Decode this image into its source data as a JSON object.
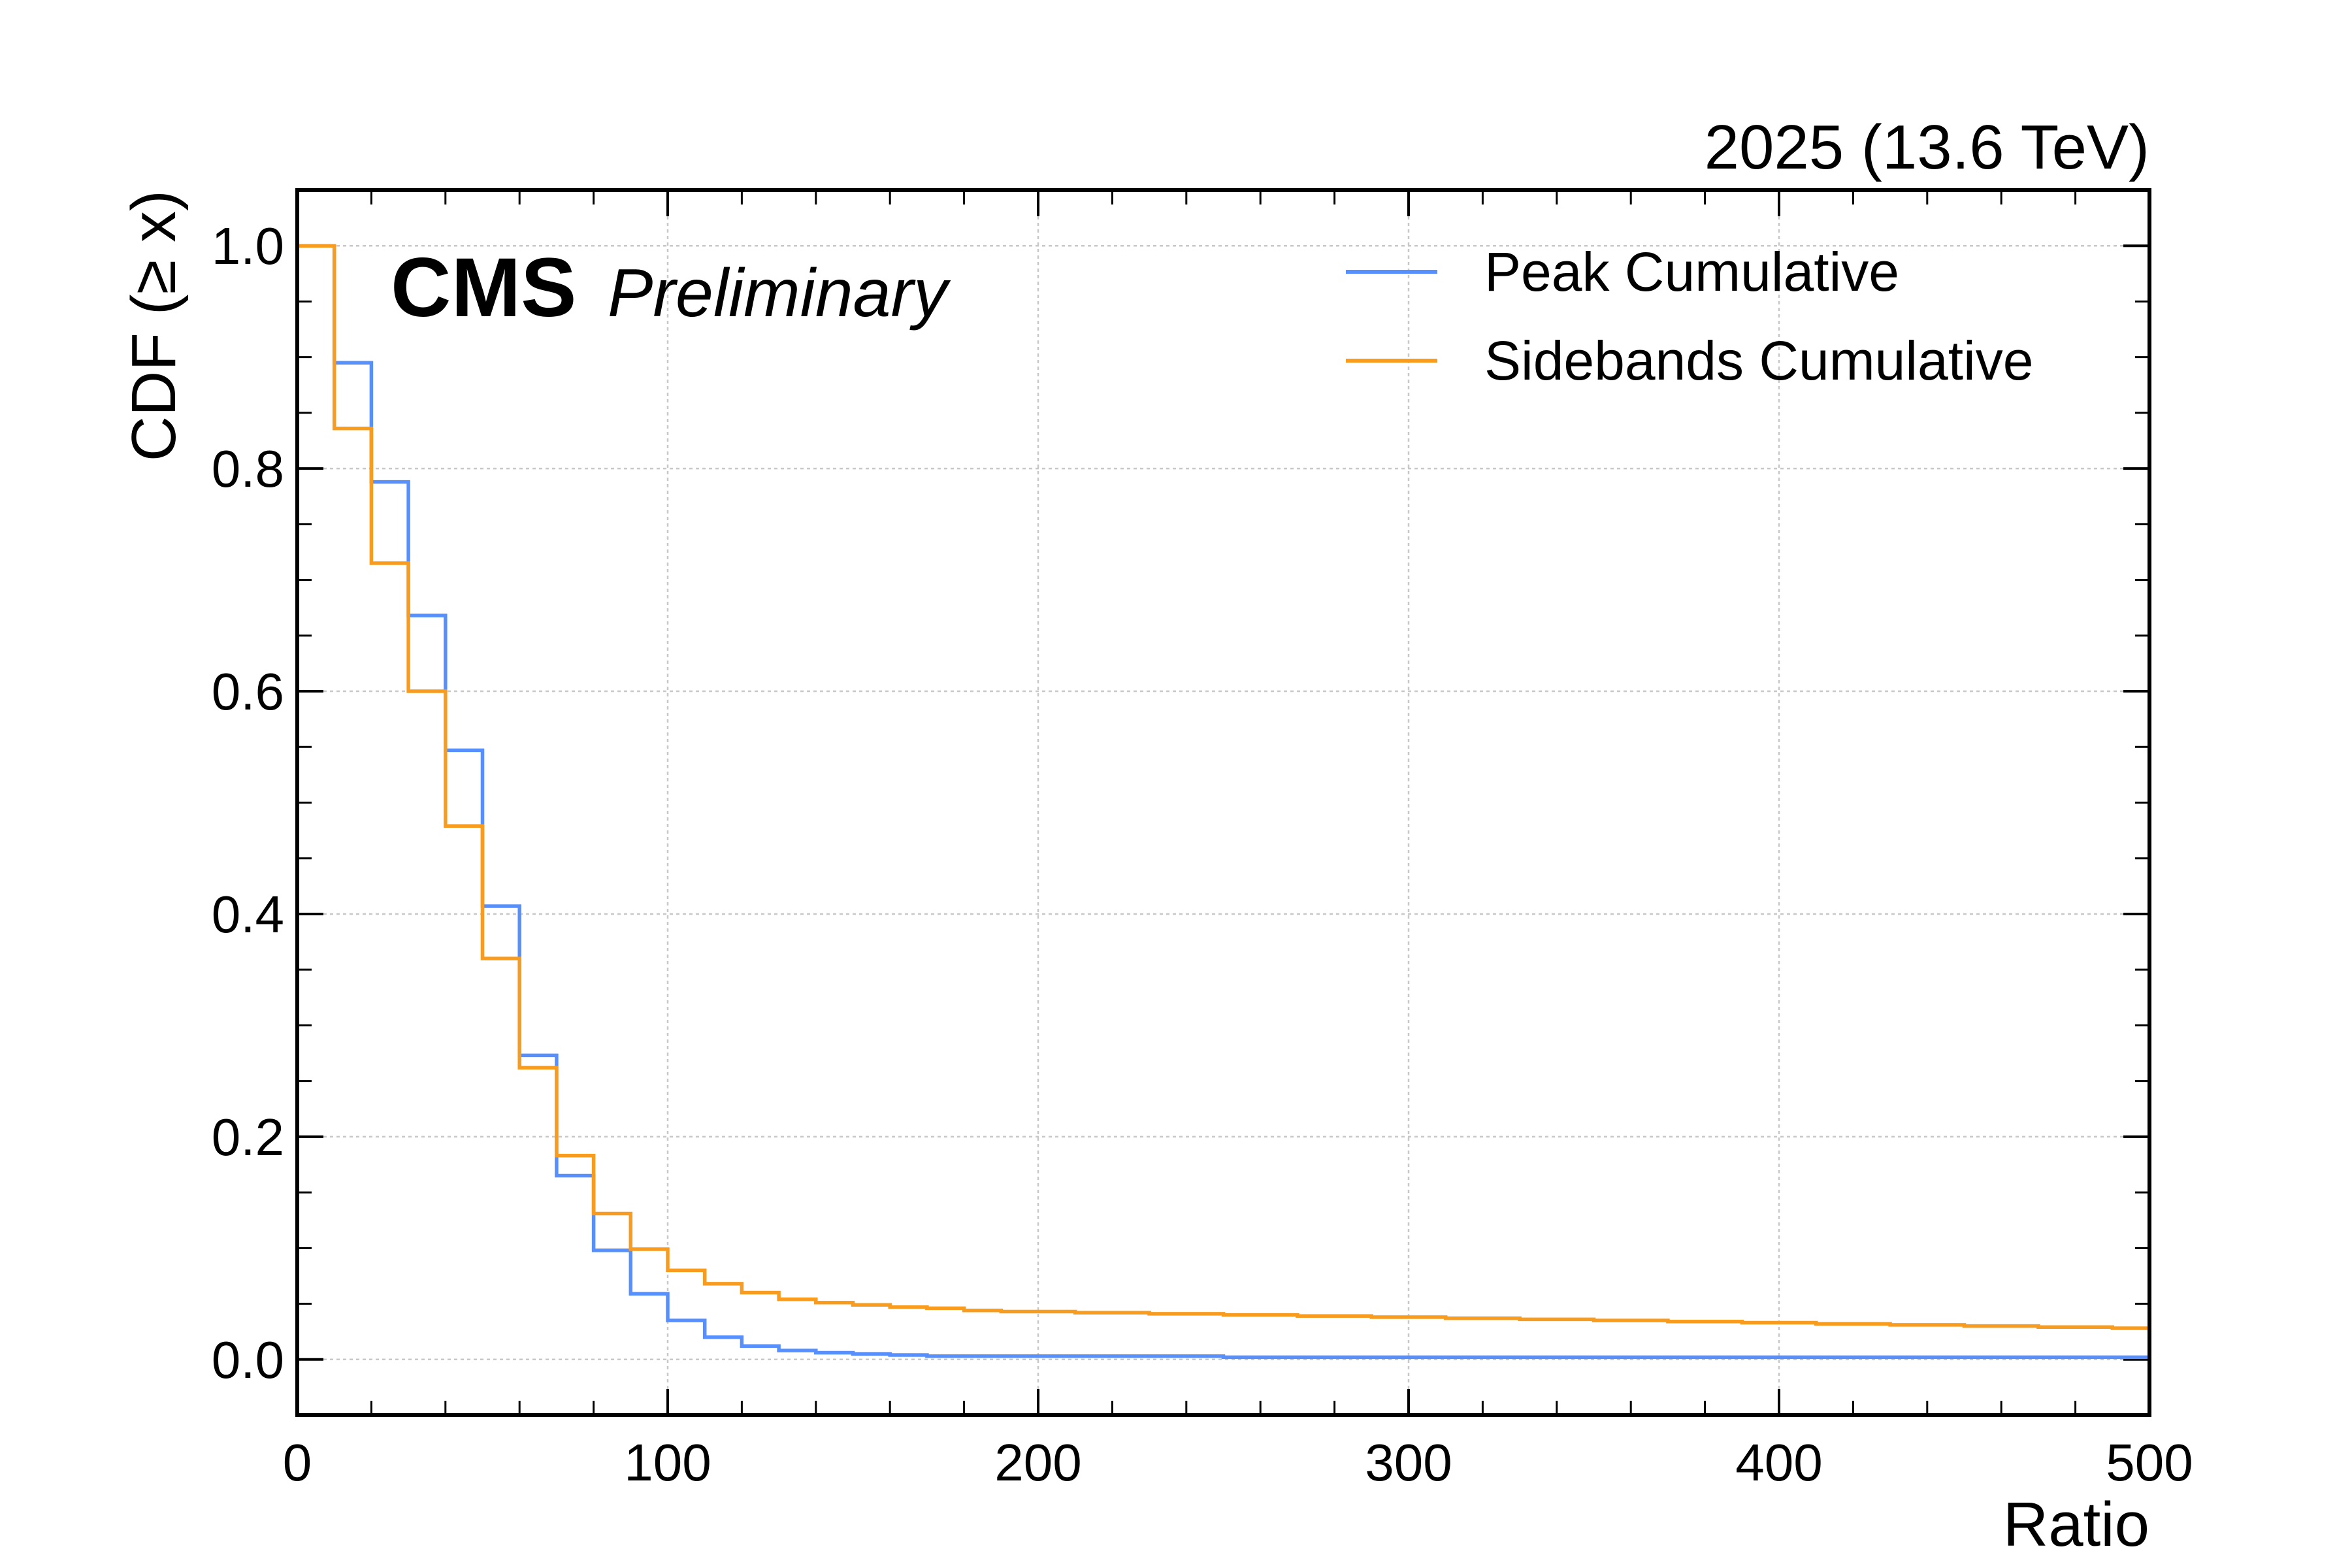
{
  "chart_data": {
    "type": "line",
    "drawstyle": "steps-post",
    "experiment_label": "CMS",
    "status_label": "Preliminary",
    "lumi_label": "2025 (13.6 TeV)",
    "xlabel": "Ratio",
    "ylabel": "CDF (≥ x)",
    "xlim": [
      0,
      500
    ],
    "ylim": [
      -0.05,
      1.05
    ],
    "xticks": [
      0,
      100,
      200,
      300,
      400,
      500
    ],
    "xtick_labels": [
      "0",
      "100",
      "200",
      "300",
      "400",
      "500"
    ],
    "yticks": [
      0.0,
      0.2,
      0.4,
      0.6,
      0.8,
      1.0
    ],
    "ytick_labels": [
      "0.0",
      "0.2",
      "0.4",
      "0.6",
      "0.8",
      "1.0"
    ],
    "grid": true,
    "legend_position": "top-right",
    "bin_edges": [
      0,
      10,
      20,
      30,
      40,
      50,
      60,
      70,
      80,
      90,
      100,
      110,
      120,
      130,
      140,
      150,
      160,
      170,
      180,
      190,
      200,
      210,
      220,
      230,
      240,
      250,
      260,
      270,
      280,
      290,
      300,
      310,
      320,
      330,
      340,
      350,
      360,
      370,
      380,
      390,
      400,
      410,
      420,
      430,
      440,
      450,
      460,
      470,
      480,
      490,
      500
    ],
    "series": [
      {
        "name": "Peak Cumulative",
        "color": "#5790fc",
        "values": [
          1.0,
          0.895,
          0.788,
          0.668,
          0.547,
          0.407,
          0.273,
          0.165,
          0.098,
          0.059,
          0.035,
          0.02,
          0.012,
          0.008,
          0.006,
          0.005,
          0.004,
          0.003,
          0.003,
          0.003,
          0.003,
          0.003,
          0.003,
          0.003,
          0.003,
          0.002,
          0.002,
          0.002,
          0.002,
          0.002,
          0.002,
          0.002,
          0.002,
          0.002,
          0.002,
          0.002,
          0.002,
          0.002,
          0.002,
          0.002,
          0.002,
          0.002,
          0.002,
          0.002,
          0.002,
          0.002,
          0.002,
          0.002,
          0.002,
          0.002
        ]
      },
      {
        "name": "Sidebands Cumulative",
        "color": "#f89c20",
        "values": [
          1.0,
          0.836,
          0.715,
          0.6,
          0.479,
          0.36,
          0.262,
          0.183,
          0.131,
          0.099,
          0.08,
          0.068,
          0.06,
          0.054,
          0.051,
          0.049,
          0.047,
          0.046,
          0.044,
          0.043,
          0.043,
          0.042,
          0.042,
          0.041,
          0.041,
          0.04,
          0.04,
          0.039,
          0.039,
          0.038,
          0.038,
          0.037,
          0.037,
          0.036,
          0.036,
          0.035,
          0.035,
          0.034,
          0.034,
          0.033,
          0.033,
          0.032,
          0.032,
          0.031,
          0.031,
          0.03,
          0.03,
          0.029,
          0.029,
          0.028
        ]
      }
    ]
  }
}
